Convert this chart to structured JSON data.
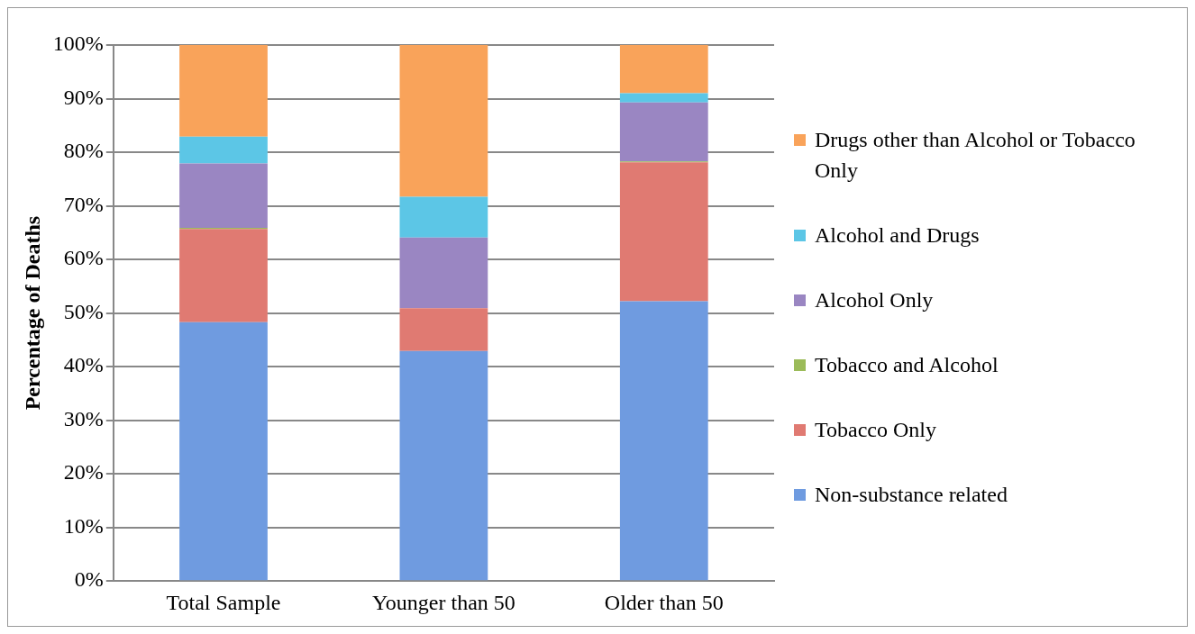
{
  "chart_data": {
    "type": "bar",
    "stacked": true,
    "ylabel": "Percentage of Deaths",
    "categories": [
      "Total Sample",
      "Younger than 50",
      "Older than 50"
    ],
    "series": [
      {
        "name": "Non-substance related",
        "color": "#6f9be0",
        "values": [
          48.3,
          42.9,
          52.2
        ]
      },
      {
        "name": "Tobacco Only",
        "color": "#e07a72",
        "values": [
          17.4,
          8.0,
          25.9
        ]
      },
      {
        "name": "Tobacco and Alcohol",
        "color": "#9bbb59",
        "values": [
          0.2,
          0,
          0.2
        ]
      },
      {
        "name": "Alcohol Only",
        "color": "#9a86c2",
        "values": [
          12.0,
          13.2,
          11.0
        ]
      },
      {
        "name": "Alcohol and Drugs",
        "color": "#5cc6e6",
        "values": [
          5.0,
          7.6,
          1.7
        ]
      },
      {
        "name": "Drugs other than Alcohol or Tobacco Only",
        "color": "#f9a35a",
        "values": [
          17.1,
          28.3,
          9.0
        ]
      }
    ],
    "ylim": [
      0,
      100
    ],
    "yticks": [
      {
        "value": 0,
        "label": "0%"
      },
      {
        "value": 10,
        "label": "10%"
      },
      {
        "value": 20,
        "label": "20%"
      },
      {
        "value": 30,
        "label": "30%"
      },
      {
        "value": 40,
        "label": "40%"
      },
      {
        "value": 50,
        "label": "50%"
      },
      {
        "value": 60,
        "label": "60%"
      },
      {
        "value": 70,
        "label": "70%"
      },
      {
        "value": 80,
        "label": "80%"
      },
      {
        "value": 90,
        "label": "90%"
      },
      {
        "value": 100,
        "label": "100%"
      }
    ],
    "grid": "y",
    "legend": "right"
  }
}
